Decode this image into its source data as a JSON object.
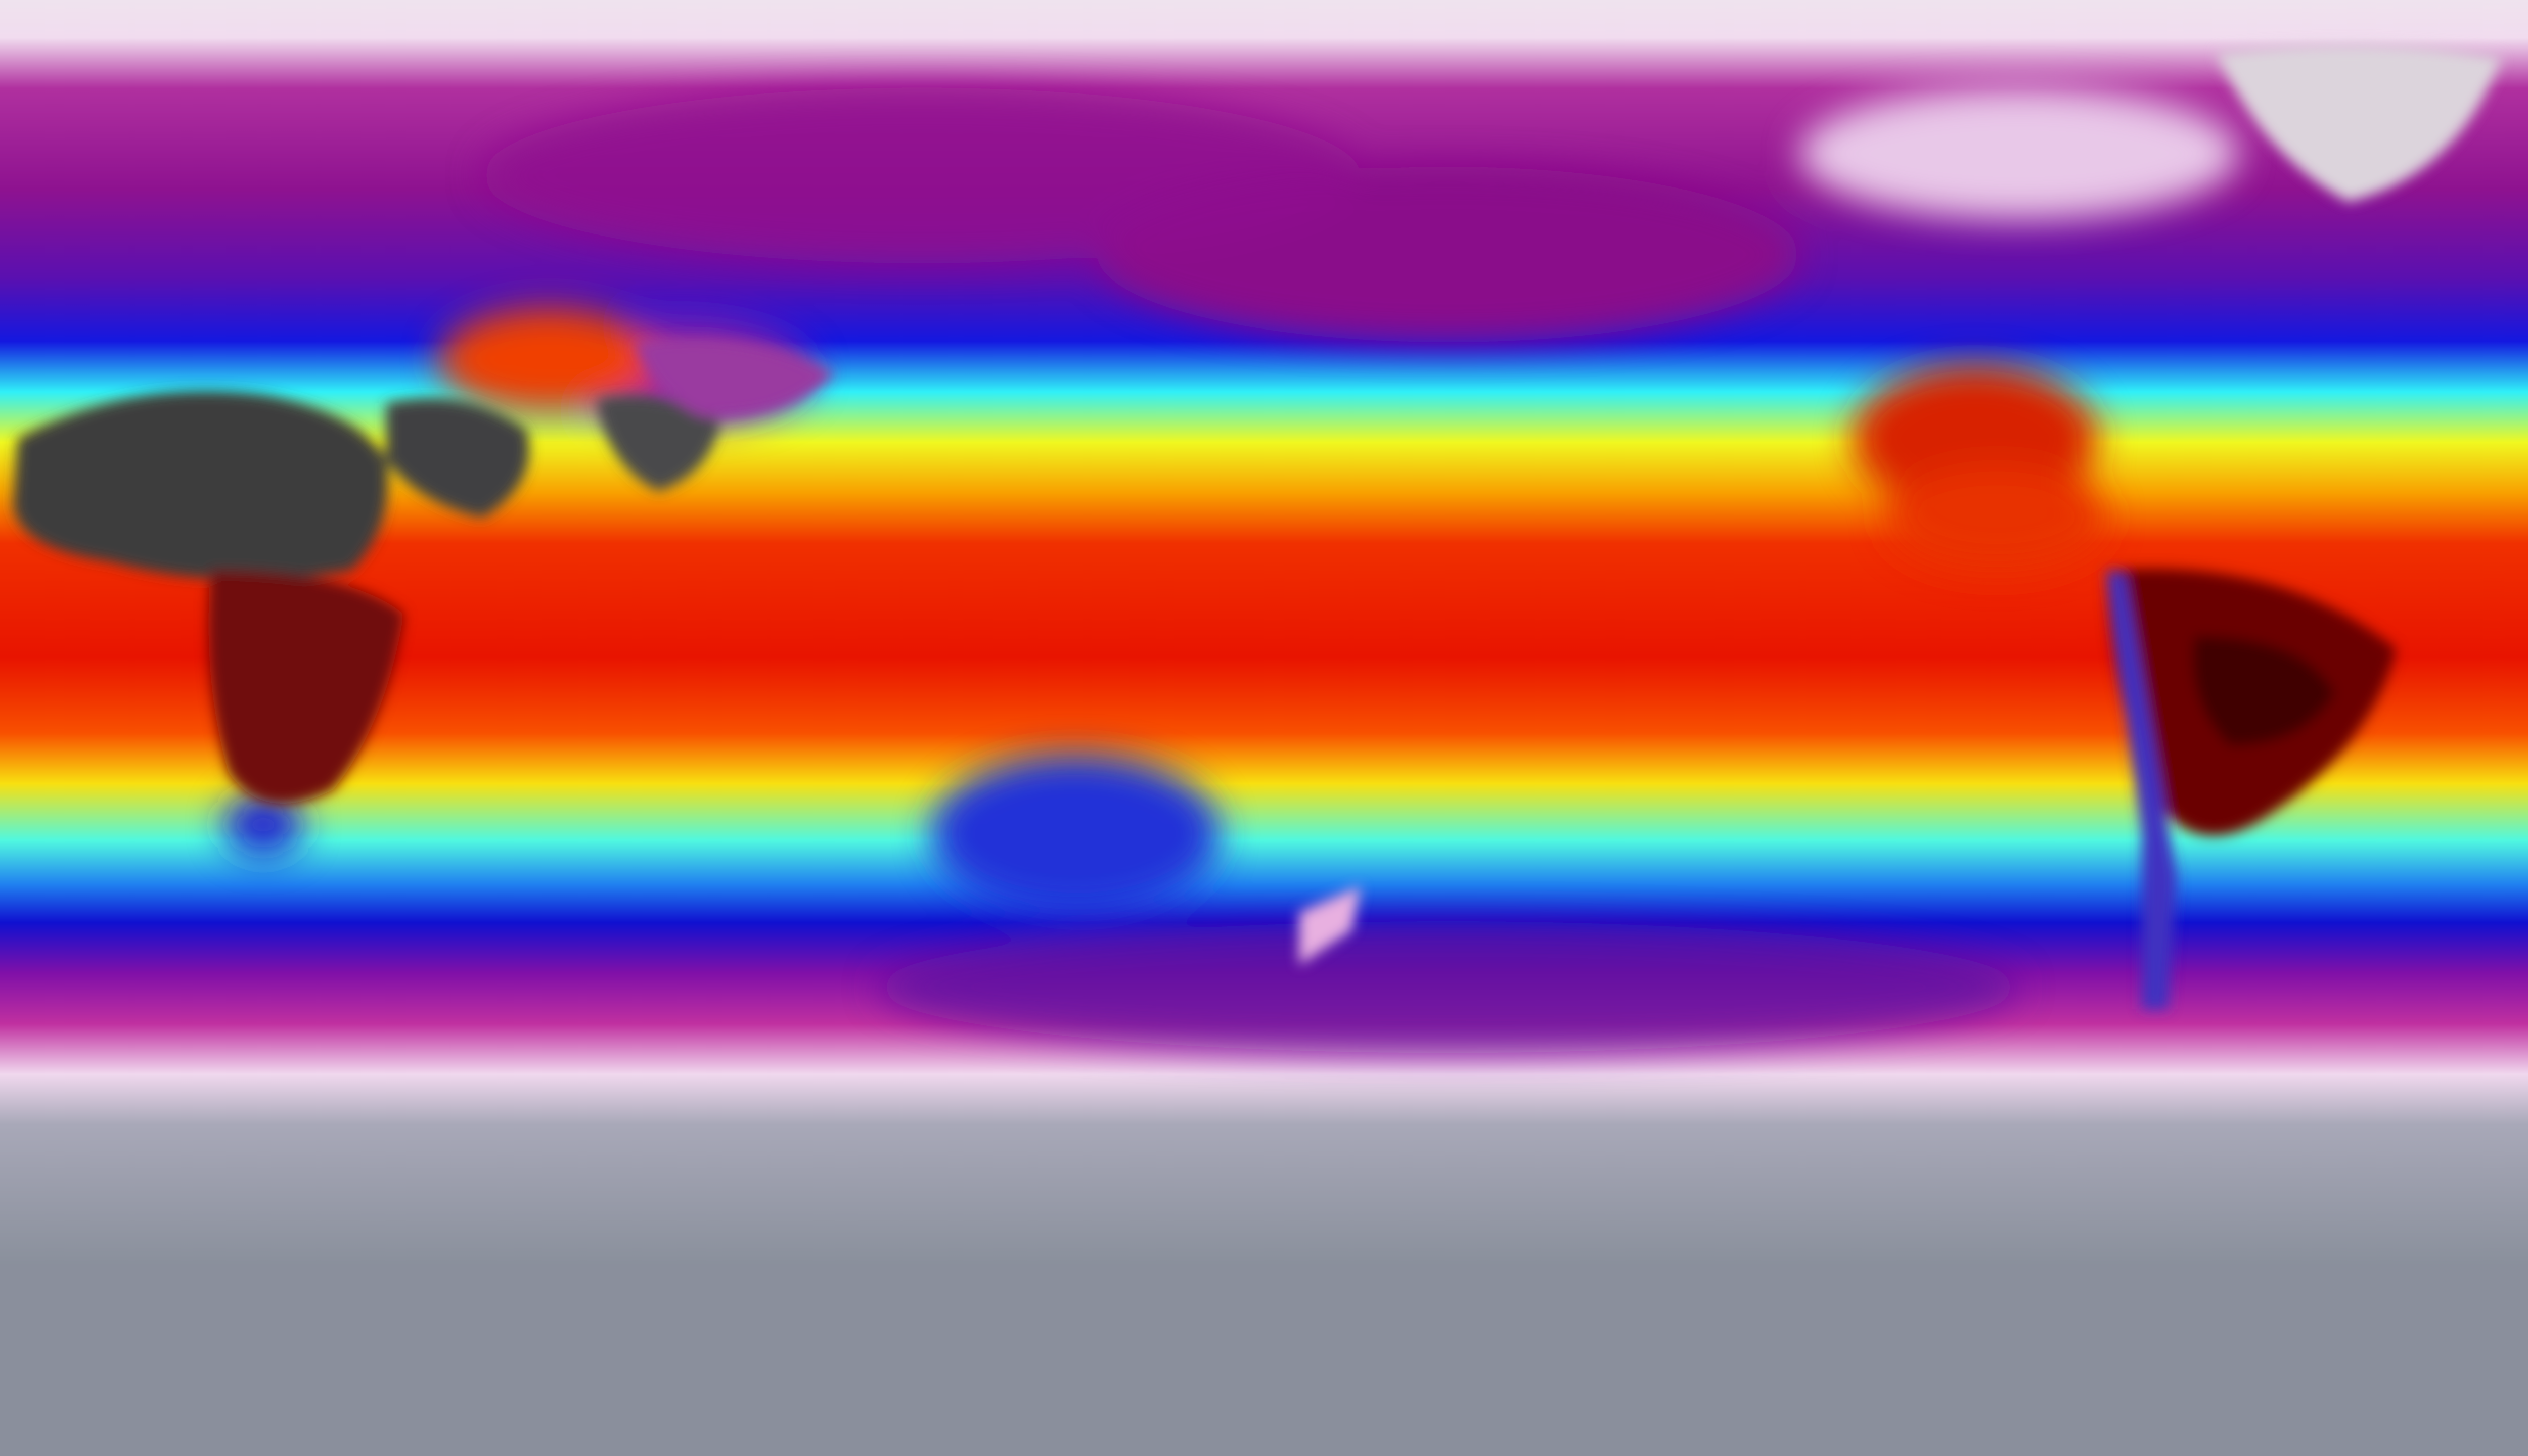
{
  "map": {
    "projection": "equirectangular",
    "colorscale": {
      "polar_cap": "#8e93a0",
      "very_cold": "#f3dcef",
      "cold": "#9a119a",
      "cool": "#1414d8",
      "mild": "#30f0f8",
      "warm": "#f8f820",
      "hot": "#f85000",
      "very_hot": "#e01000",
      "extreme": "#600000",
      "desert": "#3a3a3a"
    }
  }
}
